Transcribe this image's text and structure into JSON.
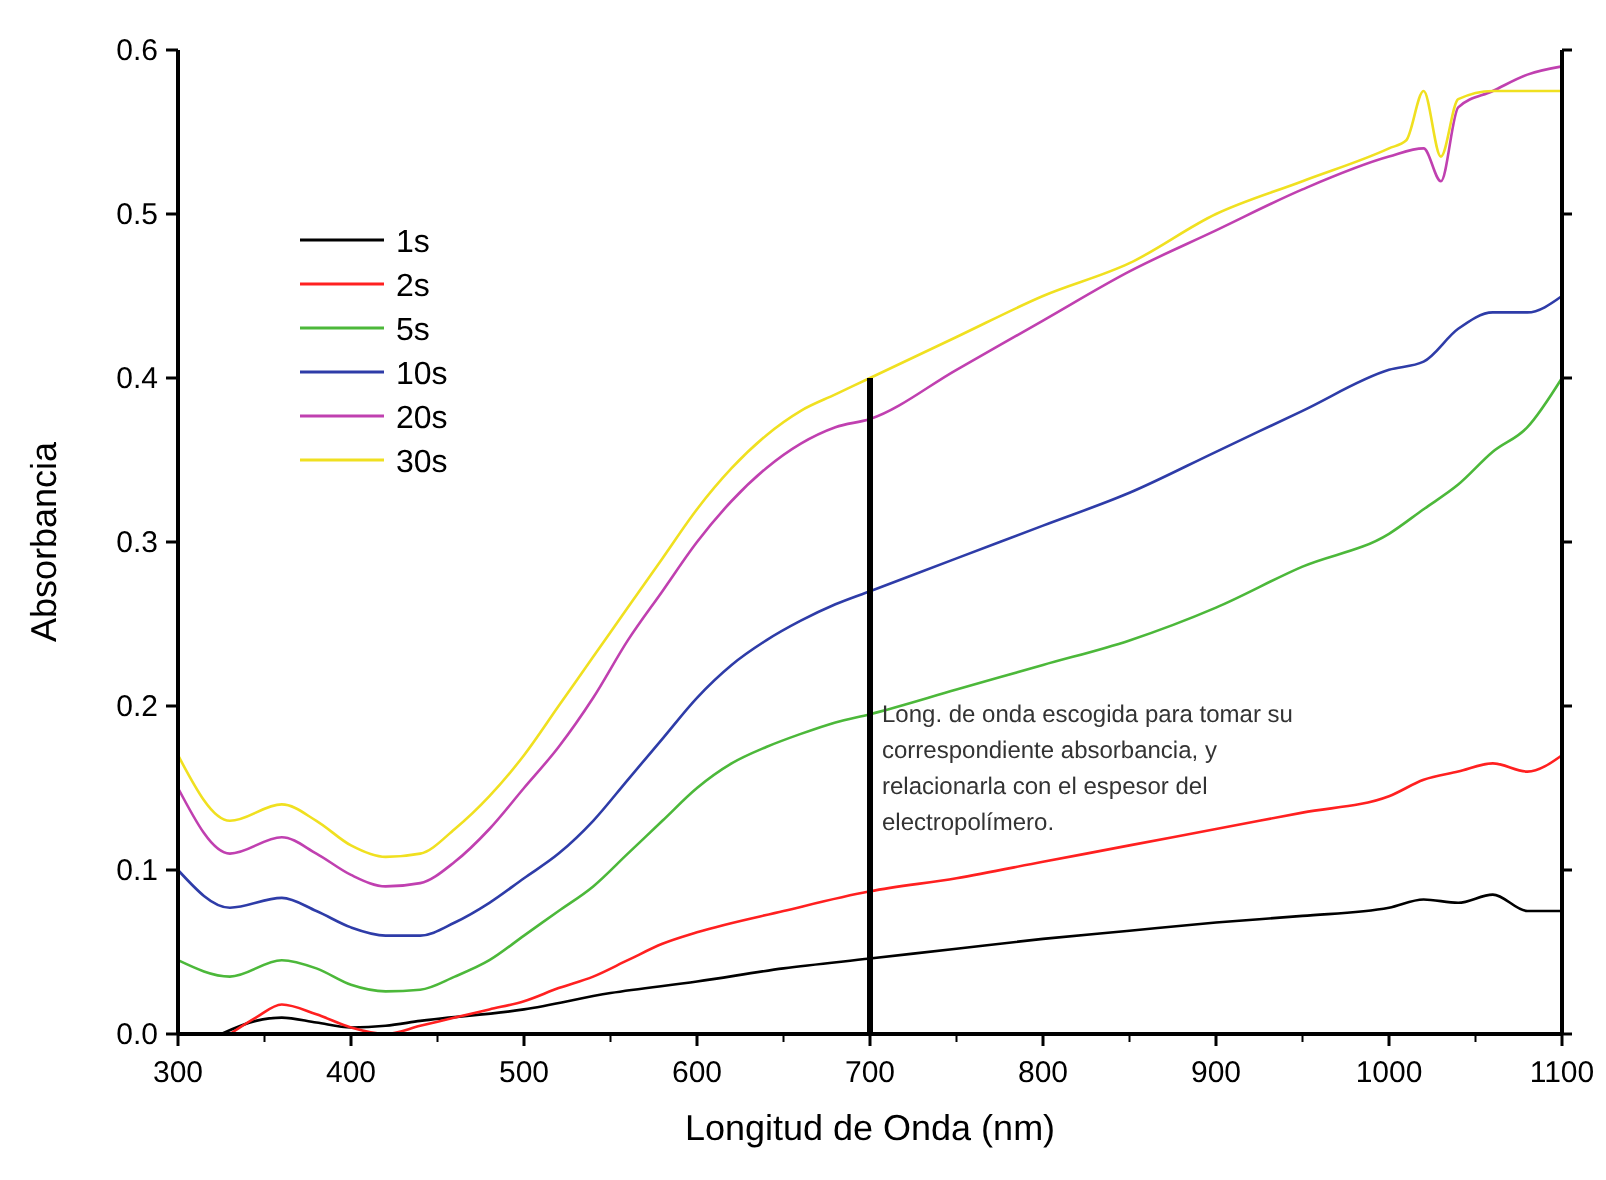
{
  "chart_data": {
    "type": "line",
    "xlabel": "Longitud de Onda (nm)",
    "ylabel": "Absorbancia",
    "xlim": [
      300,
      1100
    ],
    "xticks": [
      300,
      400,
      500,
      600,
      700,
      800,
      900,
      1000,
      1100
    ],
    "ylim": [
      0,
      0.6
    ],
    "yticks": [
      {
        "value": 0,
        "label": "0.0"
      },
      0.1,
      0.2,
      0.3,
      0.4,
      0.5,
      0.6
    ],
    "grid": false,
    "legend": "top left",
    "line_style": "solid",
    "ref_lines": [
      {
        "axis": "x",
        "value": 700,
        "color": "#000000",
        "label": "Long. de onda escogida para tomar su correspondiente absorbancia, y relacionarla con el espesor del electropolímero."
      }
    ],
    "series": [
      {
        "name": "1s",
        "color": "#000000",
        "x": [
          325,
          345,
          360,
          380,
          400,
          420,
          440,
          500,
          550,
          600,
          650,
          700,
          750,
          800,
          850,
          900,
          950,
          1000,
          1020,
          1040,
          1060,
          1080,
          1100
        ],
        "values": [
          0.0,
          0.008,
          0.01,
          0.007,
          0.004,
          0.005,
          0.008,
          0.015,
          0.025,
          0.032,
          0.04,
          0.046,
          0.052,
          0.058,
          0.063,
          0.068,
          0.072,
          0.077,
          0.082,
          0.08,
          0.085,
          0.075,
          0.075
        ]
      },
      {
        "name": "2s",
        "color": "#ff2020",
        "x": [
          330,
          345,
          360,
          380,
          400,
          420,
          440,
          460,
          480,
          500,
          520,
          540,
          560,
          580,
          600,
          650,
          700,
          750,
          800,
          850,
          900,
          950,
          1000,
          1020,
          1040,
          1060,
          1080,
          1100
        ],
        "values": [
          0.0,
          0.01,
          0.018,
          0.012,
          0.004,
          0.0,
          0.005,
          0.01,
          0.015,
          0.02,
          0.028,
          0.035,
          0.045,
          0.055,
          0.062,
          0.075,
          0.087,
          0.095,
          0.105,
          0.115,
          0.125,
          0.135,
          0.145,
          0.155,
          0.16,
          0.165,
          0.16,
          0.17
        ]
      },
      {
        "name": "5s",
        "color": "#4cb83a",
        "x": [
          300,
          330,
          360,
          380,
          400,
          420,
          440,
          460,
          480,
          500,
          520,
          540,
          560,
          580,
          600,
          620,
          640,
          660,
          680,
          700,
          750,
          800,
          850,
          900,
          950,
          1000,
          1020,
          1040,
          1060,
          1080,
          1100
        ],
        "values": [
          0.045,
          0.035,
          0.045,
          0.04,
          0.03,
          0.026,
          0.027,
          0.035,
          0.045,
          0.06,
          0.075,
          0.09,
          0.11,
          0.13,
          0.15,
          0.165,
          0.175,
          0.183,
          0.19,
          0.195,
          0.21,
          0.225,
          0.24,
          0.26,
          0.285,
          0.305,
          0.32,
          0.335,
          0.355,
          0.37,
          0.4
        ]
      },
      {
        "name": "10s",
        "color": "#2e3ca8",
        "x": [
          300,
          330,
          360,
          380,
          400,
          420,
          440,
          460,
          480,
          500,
          520,
          540,
          560,
          580,
          600,
          620,
          640,
          660,
          680,
          700,
          750,
          800,
          850,
          900,
          950,
          1000,
          1020,
          1040,
          1060,
          1080,
          1100
        ],
        "values": [
          0.1,
          0.077,
          0.083,
          0.075,
          0.065,
          0.06,
          0.06,
          0.068,
          0.08,
          0.095,
          0.11,
          0.13,
          0.155,
          0.18,
          0.205,
          0.225,
          0.24,
          0.252,
          0.262,
          0.27,
          0.29,
          0.31,
          0.33,
          0.355,
          0.38,
          0.405,
          0.41,
          0.43,
          0.44,
          0.44,
          0.45
        ]
      },
      {
        "name": "20s",
        "color": "#c040b0",
        "x": [
          300,
          330,
          360,
          380,
          400,
          420,
          440,
          460,
          480,
          500,
          520,
          540,
          560,
          580,
          600,
          620,
          640,
          660,
          680,
          700,
          750,
          800,
          850,
          900,
          950,
          1000,
          1020,
          1030,
          1040,
          1060,
          1080,
          1100
        ],
        "values": [
          0.15,
          0.11,
          0.12,
          0.11,
          0.097,
          0.09,
          0.092,
          0.105,
          0.125,
          0.15,
          0.175,
          0.205,
          0.24,
          0.27,
          0.3,
          0.325,
          0.345,
          0.36,
          0.37,
          0.375,
          0.405,
          0.435,
          0.465,
          0.49,
          0.515,
          0.535,
          0.54,
          0.52,
          0.565,
          0.575,
          0.585,
          0.59
        ]
      },
      {
        "name": "30s",
        "color": "#f0e020",
        "x": [
          300,
          330,
          360,
          380,
          400,
          420,
          440,
          460,
          480,
          500,
          520,
          540,
          560,
          580,
          600,
          620,
          640,
          660,
          680,
          700,
          750,
          800,
          850,
          900,
          950,
          1000,
          1010,
          1020,
          1030,
          1040,
          1060,
          1080,
          1100
        ],
        "values": [
          0.17,
          0.13,
          0.14,
          0.13,
          0.115,
          0.108,
          0.11,
          0.125,
          0.145,
          0.17,
          0.2,
          0.23,
          0.26,
          0.29,
          0.32,
          0.345,
          0.365,
          0.38,
          0.39,
          0.4,
          0.425,
          0.45,
          0.47,
          0.5,
          0.52,
          0.54,
          0.545,
          0.575,
          0.535,
          0.57,
          0.575,
          0.575,
          0.575
        ]
      }
    ]
  }
}
